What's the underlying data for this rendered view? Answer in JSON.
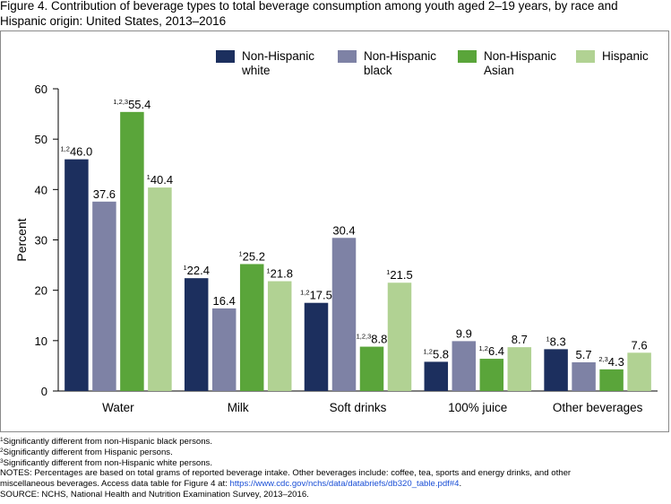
{
  "figure_title": "Figure 4. Contribution of beverage types to total beverage consumption among youth aged 2–19 years, by race and Hispanic origin: United States, 2013–2016",
  "colors": {
    "Non-Hispanic white": "#1c2f5e",
    "Non-Hispanic black": "#7e82a5",
    "Non-Hispanic Asian": "#5aa53a",
    "Hispanic": "#b1d293",
    "axis": "#000000"
  },
  "chart_data": {
    "type": "bar",
    "ylabel": "Percent",
    "ylim": [
      0,
      60
    ],
    "yticks": [
      0,
      10,
      20,
      30,
      40,
      50,
      60
    ],
    "grid": false,
    "legend_position": "top-right",
    "categories": [
      "Water",
      "Milk",
      "Soft drinks",
      "100% juice",
      "Other beverages"
    ],
    "series": [
      {
        "name": "Non-Hispanic white",
        "legend_lines": [
          "Non-Hispanic",
          "white"
        ],
        "values": [
          46.0,
          22.4,
          17.5,
          5.8,
          8.3
        ],
        "labels": [
          "46.0",
          "22.4",
          "17.5",
          "5.8",
          "8.3"
        ],
        "marks": [
          "1,2",
          "1",
          "1,2",
          "1,2",
          "1"
        ]
      },
      {
        "name": "Non-Hispanic black",
        "legend_lines": [
          "Non-Hispanic",
          "black"
        ],
        "values": [
          37.6,
          16.4,
          30.4,
          9.9,
          5.7
        ],
        "labels": [
          "37.6",
          "16.4",
          "30.4",
          "9.9",
          "5.7"
        ],
        "marks": [
          "",
          "",
          "",
          "",
          ""
        ]
      },
      {
        "name": "Non-Hispanic Asian",
        "legend_lines": [
          "Non-Hispanic",
          "Asian"
        ],
        "values": [
          55.4,
          25.2,
          8.8,
          6.4,
          4.3
        ],
        "labels": [
          "55.4",
          "25.2",
          "8.8",
          "6.4",
          "4.3"
        ],
        "marks": [
          "1,2,3",
          "1",
          "1,2,3",
          "1,2",
          "2,3"
        ]
      },
      {
        "name": "Hispanic",
        "legend_lines": [
          "Hispanic"
        ],
        "values": [
          40.4,
          21.8,
          21.5,
          8.7,
          7.6
        ],
        "labels": [
          "40.4",
          "21.8",
          "21.5",
          "8.7",
          "7.6"
        ],
        "marks": [
          "1",
          "1",
          "1",
          "",
          ""
        ]
      }
    ]
  },
  "notes": {
    "footnote1": {
      "mark": "1",
      "text": "Significantly different from non-Hispanic black persons."
    },
    "footnote2": {
      "mark": "2",
      "text": "Significantly different from Hispanic persons."
    },
    "footnote3": {
      "mark": "3",
      "text": "Significantly different from non-Hispanic white persons."
    },
    "notes_line1": "NOTES: Percentages are based on total grams of reported beverage intake. Other beverages include: coffee, tea, sports and energy drinks, and other",
    "notes_line2_pre": "miscellaneous beverages. Access data table for Figure 4 at: ",
    "notes_link": "https://www.cdc.gov/nchs/data/databriefs/db320_table.pdf#4",
    "notes_line2_post": ".",
    "source": "SOURCE: NCHS, National Health and Nutrition Examination Survey, 2013–2016."
  }
}
